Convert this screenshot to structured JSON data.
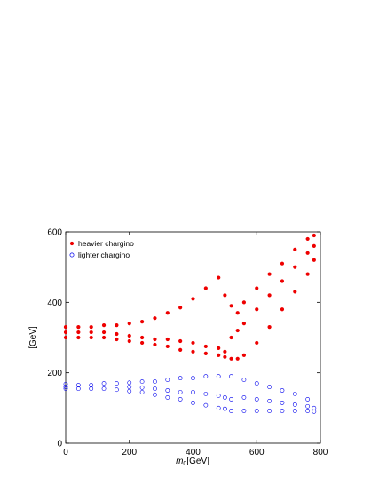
{
  "chart_data": {
    "type": "scatter",
    "title": "",
    "xlabel": "[GeV]",
    "xlabel_symbol": "m",
    "xlabel_sub": "0",
    "ylabel": "[GeV]",
    "xlim": [
      0,
      800
    ],
    "ylim": [
      0,
      600
    ],
    "xticks": [
      "0",
      "200",
      "400",
      "600",
      "800"
    ],
    "yticks": [
      "0",
      "200",
      "400",
      "600"
    ],
    "grid": false,
    "legend_position": "top-left",
    "series": [
      {
        "name": "heavier chargino",
        "marker": "filled-circle",
        "color": "#ee0000",
        "x": [
          0,
          0,
          0,
          40,
          40,
          40,
          80,
          80,
          80,
          120,
          120,
          120,
          160,
          160,
          160,
          200,
          200,
          200,
          240,
          240,
          240,
          280,
          280,
          280,
          320,
          320,
          320,
          360,
          360,
          360,
          400,
          400,
          400,
          440,
          440,
          440,
          480,
          480,
          480,
          500,
          500,
          500,
          520,
          520,
          520,
          540,
          540,
          540,
          560,
          560,
          560,
          600,
          600,
          600,
          640,
          640,
          640,
          680,
          680,
          680,
          720,
          720,
          720,
          760,
          760,
          760,
          780,
          780,
          780
        ],
        "y": [
          300,
          315,
          330,
          300,
          315,
          330,
          300,
          315,
          330,
          300,
          315,
          335,
          295,
          310,
          335,
          290,
          305,
          340,
          285,
          300,
          345,
          280,
          295,
          355,
          275,
          295,
          370,
          265,
          290,
          385,
          260,
          285,
          410,
          255,
          275,
          440,
          250,
          270,
          470,
          245,
          260,
          420,
          240,
          300,
          390,
          240,
          320,
          370,
          250,
          340,
          400,
          285,
          380,
          440,
          330,
          420,
          480,
          380,
          460,
          510,
          430,
          500,
          550,
          480,
          540,
          580,
          520,
          560,
          590
        ]
      },
      {
        "name": "lighter chargino",
        "marker": "open-circle",
        "color": "#0000ee",
        "x": [
          0,
          0,
          0,
          40,
          40,
          80,
          80,
          120,
          120,
          160,
          160,
          200,
          200,
          200,
          240,
          240,
          240,
          280,
          280,
          280,
          320,
          320,
          320,
          360,
          360,
          360,
          400,
          400,
          400,
          440,
          440,
          440,
          480,
          480,
          480,
          500,
          500,
          520,
          520,
          520,
          560,
          560,
          560,
          600,
          600,
          600,
          640,
          640,
          640,
          680,
          680,
          680,
          720,
          720,
          720,
          760,
          760,
          760,
          780,
          780
        ],
        "y": [
          155,
          160,
          168,
          155,
          165,
          155,
          165,
          155,
          170,
          152,
          170,
          148,
          160,
          172,
          145,
          158,
          175,
          138,
          155,
          175,
          130,
          150,
          180,
          125,
          145,
          185,
          115,
          145,
          185,
          108,
          140,
          190,
          100,
          135,
          190,
          98,
          130,
          92,
          125,
          190,
          92,
          130,
          180,
          92,
          125,
          170,
          92,
          120,
          160,
          92,
          115,
          150,
          92,
          110,
          140,
          92,
          105,
          125,
          90,
          100
        ]
      }
    ]
  }
}
